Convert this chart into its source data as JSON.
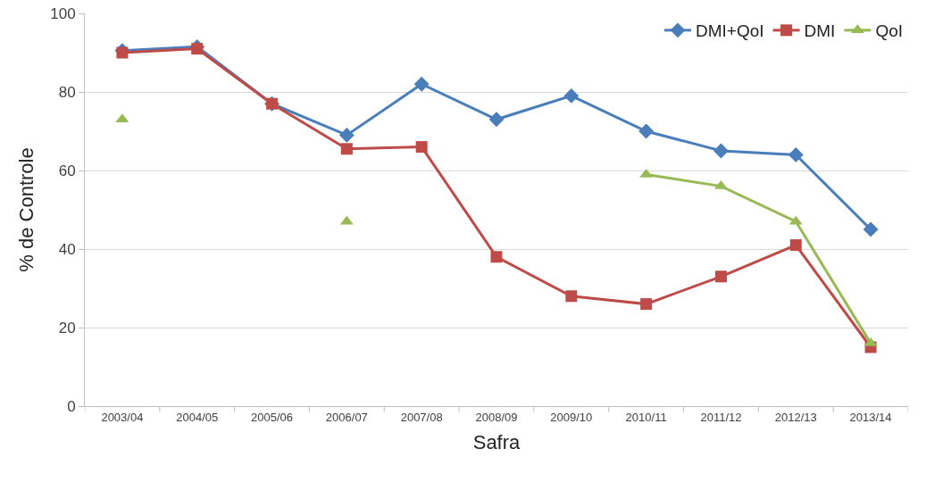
{
  "chart_data": {
    "type": "line",
    "xlabel": "Safra",
    "ylabel": "% de Controle",
    "categories": [
      "2003/04",
      "2004/05",
      "2005/06",
      "2006/07",
      "2007/08",
      "2008/09",
      "2009/10",
      "2010/11",
      "2011/12",
      "2012/13",
      "2013/14"
    ],
    "series": [
      {
        "name": "DMI+QoI",
        "color": "#4a7ebb",
        "marker": "diamond",
        "values": [
          90.5,
          91.5,
          77,
          69,
          82,
          73,
          79,
          70,
          65,
          64,
          45
        ]
      },
      {
        "name": "DMI",
        "color": "#be4b48",
        "marker": "square",
        "values": [
          90,
          91,
          77,
          65.5,
          66,
          38,
          28,
          26,
          33,
          41,
          15
        ]
      },
      {
        "name": "QoI",
        "color": "#98b954",
        "marker": "triangle",
        "values": [
          73,
          null,
          null,
          47,
          null,
          null,
          null,
          59,
          56,
          47,
          16
        ]
      }
    ],
    "ylim": [
      0,
      100
    ],
    "yticks": [
      0,
      20,
      40,
      60,
      80,
      100
    ],
    "grid": "y",
    "legend": "top right",
    "line_style": "solid"
  }
}
